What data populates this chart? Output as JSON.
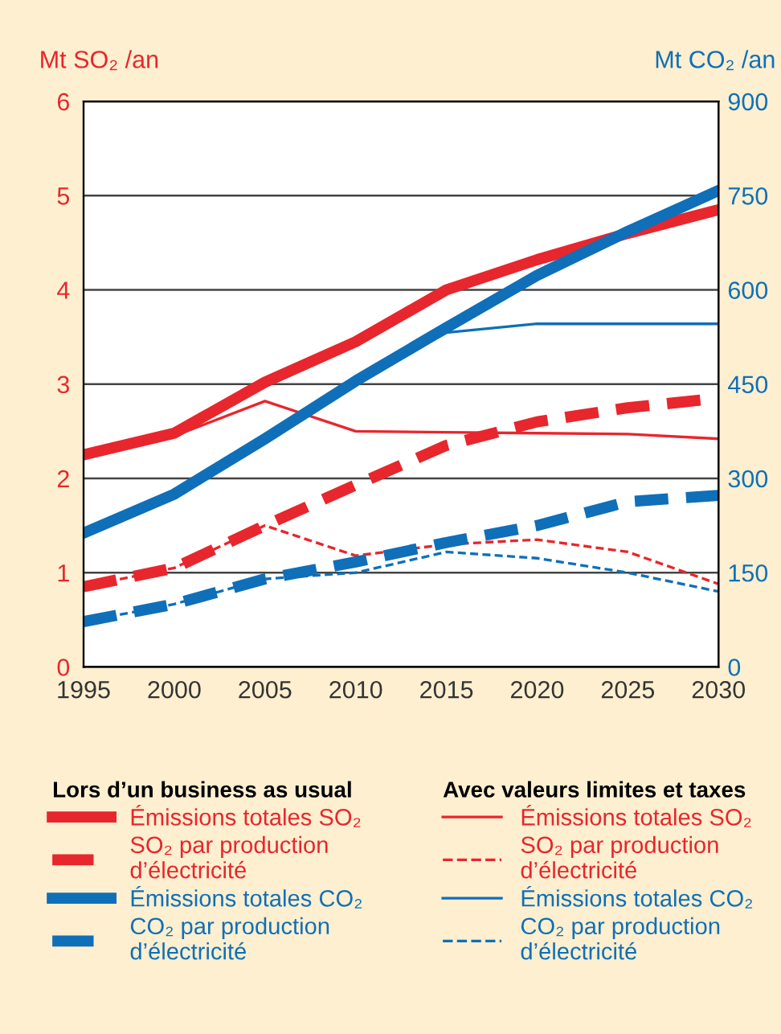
{
  "chart_data": {
    "type": "line",
    "ylabel": "Mt SO₂ /an",
    "y2label": "Mt CO₂ /an",
    "x": [
      1995,
      2000,
      2005,
      2010,
      2015,
      2020,
      2025,
      2030
    ],
    "xlim": [
      1995,
      2030
    ],
    "xticks": [
      1995,
      2000,
      2005,
      2010,
      2015,
      2020,
      2025,
      2030
    ],
    "ylim": [
      0,
      6
    ],
    "yticks": [
      0,
      1,
      2,
      3,
      4,
      5,
      6
    ],
    "y2lim": [
      0,
      900
    ],
    "y2ticks": [
      0,
      150,
      300,
      450,
      600,
      750,
      900
    ],
    "grid": "y",
    "legend": "bottom",
    "annotations": [
      "Lors d’un business as usual",
      "Avec valeurs limites et taxes"
    ],
    "series": [
      {
        "name": "Émissions totales SO₂",
        "color": "#e8262d",
        "line_style": "solid",
        "values": [
          2.25,
          2.48,
          3.02,
          3.45,
          4.0,
          4.32,
          4.6,
          4.85
        ]
      },
      {
        "name": "SO₂ par production\nd’électricité",
        "color": "#e8262d",
        "line_style": "dashed",
        "values": [
          0.85,
          1.05,
          1.5,
          1.93,
          2.35,
          2.6,
          2.75,
          2.85
        ]
      },
      {
        "name": "Émissions totales CO₂",
        "color": "#0f6fb8",
        "line_style": "solid",
        "axis": "y2",
        "values": [
          213,
          275,
          363,
          455,
          540,
          623,
          693,
          758
        ]
      },
      {
        "name": "CO₂ par production\nd’électricité",
        "color": "#0f6fb8",
        "line_style": "dashed",
        "axis": "y2",
        "values": [
          72,
          100,
          140,
          167,
          198,
          225,
          263,
          273
        ]
      },
      {
        "name": "Émissions totales SO₂",
        "color": "#e8262d",
        "line_style": "solid",
        "values": [
          2.25,
          2.45,
          2.82,
          2.5,
          2.49,
          2.48,
          2.47,
          2.42
        ]
      },
      {
        "name": "SO₂ par production\nd’électricité",
        "color": "#e8262d",
        "line_style": "dashed",
        "values": [
          0.85,
          1.05,
          1.5,
          1.18,
          1.3,
          1.35,
          1.22,
          0.88
        ]
      },
      {
        "name": "Émissions totales CO₂",
        "color": "#0f6fb8",
        "line_style": "solid",
        "axis": "y2",
        "values": [
          213,
          275,
          363,
          455,
          532,
          546,
          546,
          546
        ]
      },
      {
        "name": "CO₂ par production\nd’électricité",
        "color": "#0f6fb8",
        "line_style": "dashed",
        "axis": "y2",
        "values": [
          72,
          100,
          140,
          150,
          183,
          173,
          150,
          120
        ]
      }
    ]
  }
}
